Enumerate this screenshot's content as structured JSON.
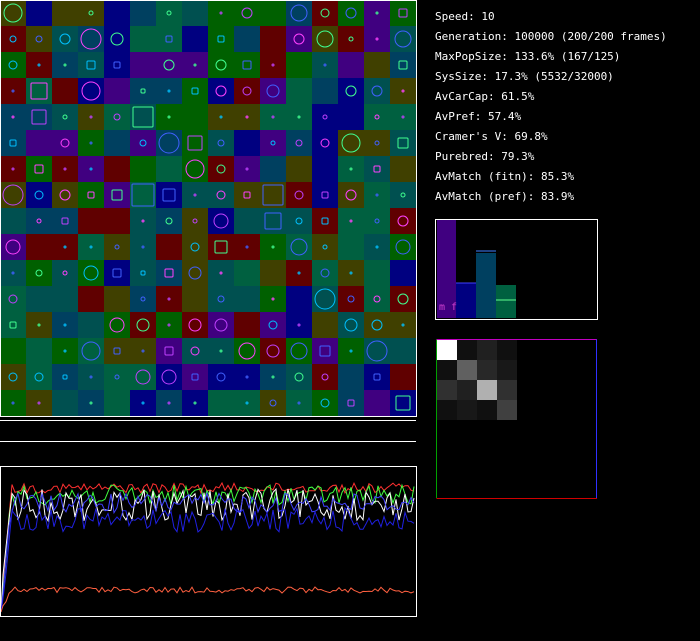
{
  "stats": [
    "Speed: 10",
    "Generation: 100000 (200/200 frames)",
    "MaxPopSize: 133.6% (167/125)",
    "SysSize: 17.3% (5532/32000)",
    "AvCarCap: 61.5%",
    "AvPref: 57.4%",
    "Cramer's V: 69.8%",
    "Purebred: 79.3%",
    "AvMatch (fitn): 85.3%",
    "AvMatch (pref): 83.9%"
  ],
  "histogram": {
    "label": "m f"
  }
}
